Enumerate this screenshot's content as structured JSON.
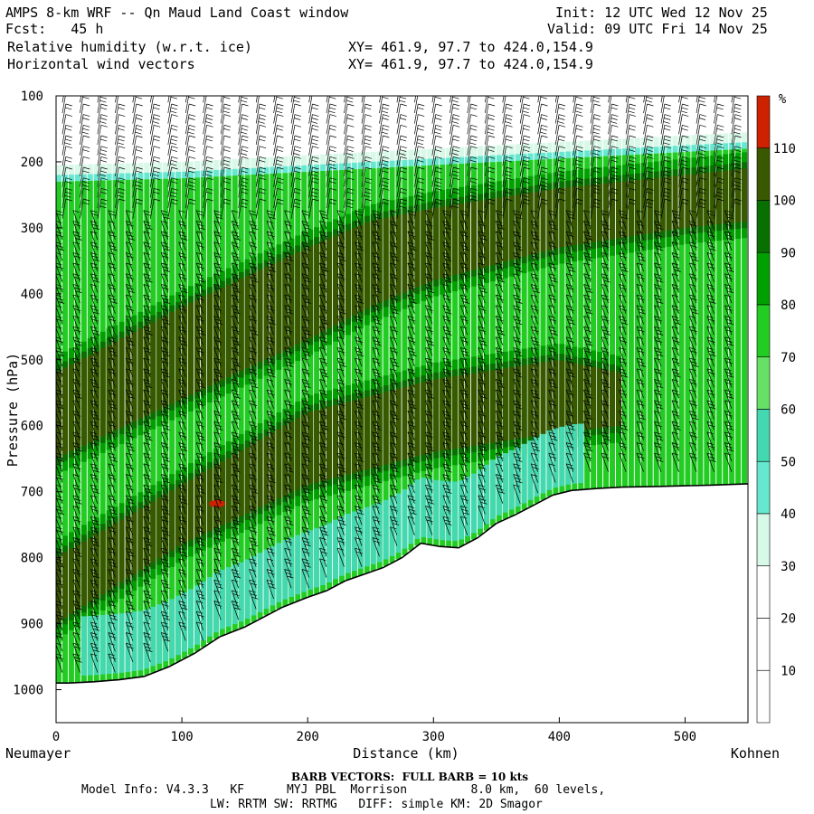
{
  "header": {
    "title": "AMPS 8-km WRF -- Qn Maud Land Coast window",
    "forecast": "Fcst:   45 h",
    "init": "Init: 12 UTC Wed 12 Nov 25",
    "valid": "Valid: 09 UTC Fri 14 Nov 25",
    "field1": "Relative humidity (w.r.t. ice)",
    "field2": "Horizontal wind vectors",
    "xy1": "XY= 461.9, 97.7 to 424.0,154.9",
    "xy2": "XY= 461.9, 97.7 to 424.0,154.9"
  },
  "footer": {
    "barb_note": "BARB VECTORS:  FULL BARB = 10 kts",
    "model_info": "Model Info: V4.3.3   KF      MYJ PBL  Morrison         8.0 km,  60 levels,",
    "physics": "LW: RRTM SW: RRTMG   DIFF: simple KM: 2D Smagor"
  },
  "chart_data": {
    "type": "heatmap",
    "title": "Relative humidity (w.r.t. ice) cross-section with horizontal wind vectors",
    "xlabel": "Distance (km)",
    "ylabel": "Pressure (hPa)",
    "x_left_label": "Neumayer",
    "x_right_label": "Kohnen",
    "xlim": [
      0,
      550
    ],
    "ylim": [
      1050,
      100
    ],
    "x_ticks": [
      0,
      100,
      200,
      300,
      400,
      500
    ],
    "y_ticks": [
      100,
      200,
      300,
      400,
      500,
      600,
      700,
      800,
      900,
      1000
    ],
    "colorbar": {
      "unit": "%",
      "levels": [
        10,
        20,
        30,
        40,
        50,
        60,
        70,
        80,
        90,
        100,
        110
      ],
      "colors": [
        "#ffffff",
        "#ffffff",
        "#ffffff",
        "#d8f8e8",
        "#66e8d0",
        "#44d8b0",
        "#66e066",
        "#22cc22",
        "#00a000",
        "#087000",
        "#3a5800",
        "#cc2200"
      ]
    },
    "terrain_surface_hPa": {
      "x": [
        0,
        10,
        30,
        50,
        70,
        90,
        110,
        130,
        150,
        165,
        180,
        200,
        215,
        230,
        245,
        260,
        275,
        290,
        305,
        320,
        335,
        350,
        365,
        380,
        395,
        410,
        430,
        450,
        480,
        520,
        550
      ],
      "p": [
        990,
        990,
        988,
        985,
        980,
        965,
        945,
        920,
        905,
        890,
        875,
        860,
        850,
        835,
        825,
        815,
        800,
        778,
        783,
        785,
        770,
        748,
        735,
        720,
        705,
        698,
        695,
        693,
        692,
        690,
        688
      ]
    },
    "moist_layers": [
      {
        "name": "upper dry-air boundary (RH 60%)",
        "x": [
          0,
          100,
          200,
          300,
          400,
          500,
          550
        ],
        "p": [
          230,
          225,
          215,
          205,
          195,
          185,
          180
        ]
      },
      {
        "name": "upper RH>100% core top",
        "x": [
          0,
          100,
          200,
          250,
          300,
          400,
          500,
          550
        ],
        "p": [
          520,
          420,
          330,
          290,
          270,
          240,
          220,
          210
        ]
      },
      {
        "name": "upper RH>100% core bottom",
        "x": [
          0,
          100,
          200,
          250,
          300,
          400,
          500,
          550
        ],
        "p": [
          650,
          560,
          470,
          420,
          380,
          330,
          300,
          290
        ]
      },
      {
        "name": "lower RH>100% core top",
        "x": [
          0,
          100,
          200,
          300,
          400,
          450
        ],
        "p": [
          800,
          690,
          580,
          530,
          500,
          520
        ]
      },
      {
        "name": "lower RH>100% core bottom",
        "x": [
          0,
          100,
          200,
          300,
          400,
          450
        ],
        "p": [
          900,
          780,
          690,
          640,
          610,
          600
        ]
      }
    ],
    "annotations": [
      "RH>110% spot near x=130 km, p=720 hPa"
    ]
  }
}
